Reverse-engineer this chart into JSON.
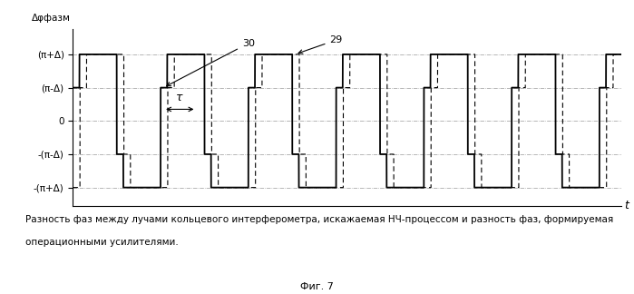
{
  "title_y": "Δφфазм",
  "xlabel": "t",
  "ylabel_levels": [
    "(π+Δ)",
    "(π-Δ)",
    "0",
    "-(π-Δ)",
    "-(π+Δ)"
  ],
  "y_values": [
    2.0,
    1.0,
    0.0,
    -1.0,
    -2.0
  ],
  "caption": "Разность фаз между лучами кольцевого интерферометра, искажаемая НЧ-процессом и разность фаз, формируемая",
  "caption2": "операционными усилителями.",
  "fig_label": "Фиг. 7",
  "background_color": "#ffffff",
  "line_color": "#000000"
}
